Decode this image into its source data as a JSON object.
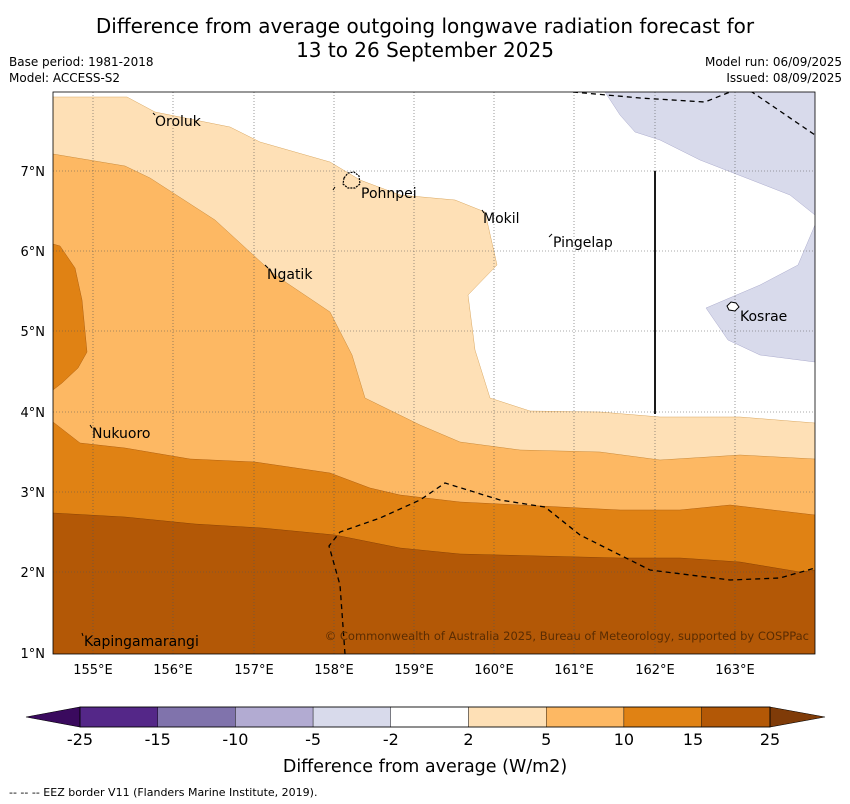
{
  "title_line1": "Difference from average outgoing longwave radiation forecast for",
  "title_line2": "13 to 26 September 2025",
  "base_period": "Base period: 1981-2018",
  "model": "Model: ACCESS-S2",
  "model_run": "Model run: 06/09/2025",
  "issued": "Issued: 08/09/2025",
  "copyright": "© Commonwealth of Australia 2025, Bureau of Meteorology, supported by COSPPac",
  "lat_labels": [
    "7°N",
    "6°N",
    "5°N",
    "4°N",
    "3°N",
    "2°N",
    "1°N"
  ],
  "lon_labels": [
    "155°E",
    "156°E",
    "157°E",
    "158°E",
    "159°E",
    "160°E",
    "161°E",
    "162°E",
    "163°E"
  ],
  "places": [
    {
      "name": "Oroluk"
    },
    {
      "name": "Pohnpei"
    },
    {
      "name": "Mokil"
    },
    {
      "name": "Pingelap"
    },
    {
      "name": "Ngatik"
    },
    {
      "name": "Kosrae"
    },
    {
      "name": "Nukuoro"
    },
    {
      "name": "Kapingamarangi"
    }
  ],
  "colorbar": {
    "label": "Difference from average (W/m2)",
    "ticks": [
      "-25",
      "-15",
      "-10",
      "-5",
      "-2",
      "2",
      "5",
      "10",
      "15",
      "25"
    ],
    "colors": [
      "#3a0a5e",
      "#542788",
      "#8073ac",
      "#b2abd2",
      "#d8daeb",
      "#ffffff",
      "#fee0b6",
      "#fdb863",
      "#e08214",
      "#b35806",
      "#7f3b08"
    ]
  },
  "footnote": "--  --  -- EEZ border V11 (Flanders Marine Institute, 2019)."
}
